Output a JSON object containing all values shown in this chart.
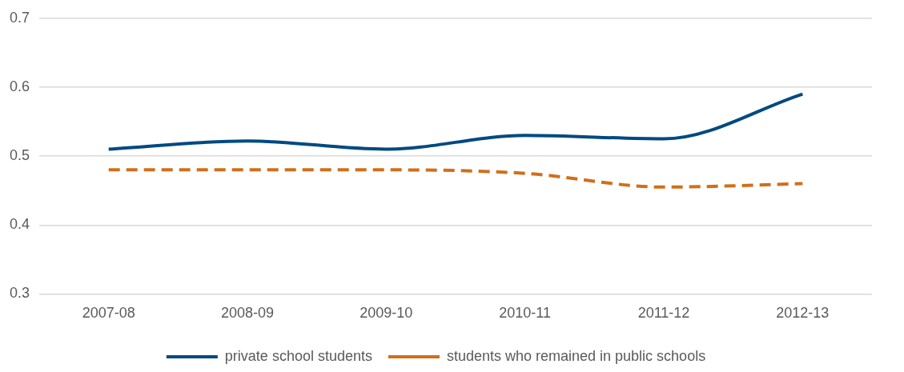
{
  "chart_data": {
    "type": "line",
    "categories": [
      "2007-08",
      "2008-09",
      "2009-10",
      "2010-11",
      "2011-12",
      "2012-13"
    ],
    "series": [
      {
        "name": "private school students",
        "color": "#004a80",
        "values": [
          0.51,
          0.522,
          0.51,
          0.53,
          0.525,
          0.59
        ],
        "line_style": "solid"
      },
      {
        "name": "students who remained in public schools",
        "color": "#d06f1a",
        "values": [
          0.48,
          0.48,
          0.48,
          0.475,
          0.455,
          0.46
        ],
        "line_style": "dashed"
      }
    ],
    "ylim": [
      0.3,
      0.7
    ],
    "yticks": [
      0.3,
      0.4,
      0.5,
      0.6,
      0.7
    ],
    "grid": "y",
    "legend": "bottom",
    "marker": "none"
  }
}
